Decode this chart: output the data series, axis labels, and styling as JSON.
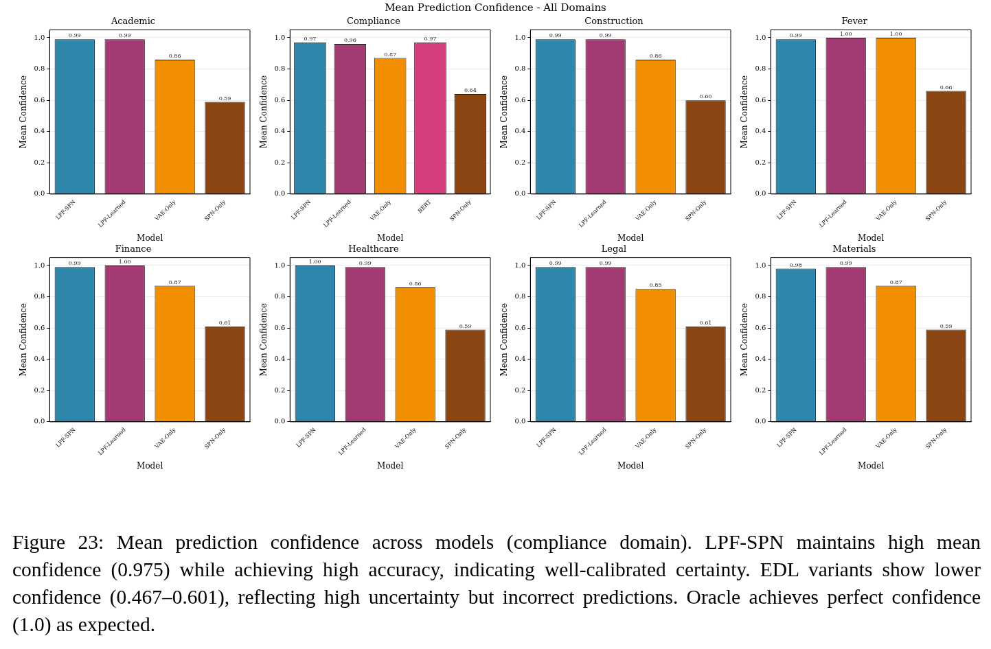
{
  "chart_data": [
    {
      "type": "other",
      "title": "Mean Prediction Confidence - All Domains"
    },
    {
      "type": "bar",
      "title": "Academic",
      "xlabel": "Model",
      "ylabel": "Mean Confidence",
      "categories": [
        "LPF-SPN",
        "LPF-Learned",
        "VAE-Only",
        "SPN-Only"
      ],
      "values": [
        0.99,
        0.99,
        0.86,
        0.59
      ],
      "value_labels": [
        "0.99",
        "0.99",
        "0.86",
        "0.59"
      ],
      "colors": [
        "#2e86ab",
        "#a23b72",
        "#f18f01",
        "#8b4513"
      ],
      "ylim": [
        0,
        1.05
      ],
      "yticks": [
        {
          "value": 0,
          "label": "0.0"
        },
        {
          "value": 0.2,
          "label": "0.2"
        },
        {
          "value": 0.4,
          "label": "0.4"
        },
        {
          "value": 0.6,
          "label": "0.6"
        },
        {
          "value": 0.8,
          "label": "0.8"
        },
        {
          "value": 1,
          "label": "1.0"
        }
      ],
      "grid": "y"
    },
    {
      "type": "bar",
      "title": "Compliance",
      "xlabel": "Model",
      "ylabel": "Mean Confidence",
      "categories": [
        "LPF-SPN",
        "LPF-Learned",
        "VAE-Only",
        "BERT",
        "SPN-Only"
      ],
      "values": [
        0.97,
        0.96,
        0.87,
        0.97,
        0.64
      ],
      "value_labels": [
        "0.97",
        "0.96",
        "0.87",
        "0.97",
        "0.64"
      ],
      "colors": [
        "#2e86ab",
        "#a23b72",
        "#f18f01",
        "#d63f7e",
        "#8b4513"
      ],
      "ylim": [
        0,
        1.05
      ],
      "yticks": [
        {
          "value": 0,
          "label": "0.0"
        },
        {
          "value": 0.2,
          "label": "0.2"
        },
        {
          "value": 0.4,
          "label": "0.4"
        },
        {
          "value": 0.6,
          "label": "0.6"
        },
        {
          "value": 0.8,
          "label": "0.8"
        },
        {
          "value": 1,
          "label": "1.0"
        }
      ],
      "grid": "y"
    },
    {
      "type": "bar",
      "title": "Construction",
      "xlabel": "Model",
      "ylabel": "Mean Confidence",
      "categories": [
        "LPF-SPN",
        "LPF-Learned",
        "VAE-Only",
        "SPN-Only"
      ],
      "values": [
        0.99,
        0.99,
        0.86,
        0.6
      ],
      "value_labels": [
        "0.99",
        "0.99",
        "0.86",
        "0.60"
      ],
      "colors": [
        "#2e86ab",
        "#a23b72",
        "#f18f01",
        "#8b4513"
      ],
      "ylim": [
        0,
        1.05
      ],
      "yticks": [
        {
          "value": 0,
          "label": "0.0"
        },
        {
          "value": 0.2,
          "label": "0.2"
        },
        {
          "value": 0.4,
          "label": "0.4"
        },
        {
          "value": 0.6,
          "label": "0.6"
        },
        {
          "value": 0.8,
          "label": "0.8"
        },
        {
          "value": 1,
          "label": "1.0"
        }
      ],
      "grid": "y"
    },
    {
      "type": "bar",
      "title": "Fever",
      "xlabel": "Model",
      "ylabel": "Mean Confidence",
      "categories": [
        "LPF-SPN",
        "LPF-Learned",
        "VAE-Only",
        "SPN-Only"
      ],
      "values": [
        0.99,
        1.0,
        1.0,
        0.66
      ],
      "value_labels": [
        "0.99",
        "1.00",
        "1.00",
        "0.66"
      ],
      "colors": [
        "#2e86ab",
        "#a23b72",
        "#f18f01",
        "#8b4513"
      ],
      "ylim": [
        0,
        1.05
      ],
      "yticks": [
        {
          "value": 0,
          "label": "0.0"
        },
        {
          "value": 0.2,
          "label": "0.2"
        },
        {
          "value": 0.4,
          "label": "0.4"
        },
        {
          "value": 0.6,
          "label": "0.6"
        },
        {
          "value": 0.8,
          "label": "0.8"
        },
        {
          "value": 1,
          "label": "1.0"
        }
      ],
      "grid": "y"
    },
    {
      "type": "bar",
      "title": "Finance",
      "xlabel": "Model",
      "ylabel": "Mean Confidence",
      "categories": [
        "LPF-SPN",
        "LPF-Learned",
        "VAE-Only",
        "SPN-Only"
      ],
      "values": [
        0.99,
        1.0,
        0.87,
        0.61
      ],
      "value_labels": [
        "0.99",
        "1.00",
        "0.87",
        "0.61"
      ],
      "colors": [
        "#2e86ab",
        "#a23b72",
        "#f18f01",
        "#8b4513"
      ],
      "ylim": [
        0,
        1.05
      ],
      "yticks": [
        {
          "value": 0,
          "label": "0.0"
        },
        {
          "value": 0.2,
          "label": "0.2"
        },
        {
          "value": 0.4,
          "label": "0.4"
        },
        {
          "value": 0.6,
          "label": "0.6"
        },
        {
          "value": 0.8,
          "label": "0.8"
        },
        {
          "value": 1,
          "label": "1.0"
        }
      ],
      "grid": "y"
    },
    {
      "type": "bar",
      "title": "Healthcare",
      "xlabel": "Model",
      "ylabel": "Mean Confidence",
      "categories": [
        "LPF-SPN",
        "LPF-Learned",
        "VAE-Only",
        "SPN-Only"
      ],
      "values": [
        1.0,
        0.99,
        0.86,
        0.59
      ],
      "value_labels": [
        "1.00",
        "0.99",
        "0.86",
        "0.59"
      ],
      "colors": [
        "#2e86ab",
        "#a23b72",
        "#f18f01",
        "#8b4513"
      ],
      "ylim": [
        0,
        1.05
      ],
      "yticks": [
        {
          "value": 0,
          "label": "0.0"
        },
        {
          "value": 0.2,
          "label": "0.2"
        },
        {
          "value": 0.4,
          "label": "0.4"
        },
        {
          "value": 0.6,
          "label": "0.6"
        },
        {
          "value": 0.8,
          "label": "0.8"
        },
        {
          "value": 1,
          "label": "1.0"
        }
      ],
      "grid": "y"
    },
    {
      "type": "bar",
      "title": "Legal",
      "xlabel": "Model",
      "ylabel": "Mean Confidence",
      "categories": [
        "LPF-SPN",
        "LPF-Learned",
        "VAE-Only",
        "SPN-Only"
      ],
      "values": [
        0.99,
        0.99,
        0.85,
        0.61
      ],
      "value_labels": [
        "0.99",
        "0.99",
        "0.85",
        "0.61"
      ],
      "colors": [
        "#2e86ab",
        "#a23b72",
        "#f18f01",
        "#8b4513"
      ],
      "ylim": [
        0,
        1.05
      ],
      "yticks": [
        {
          "value": 0,
          "label": "0.0"
        },
        {
          "value": 0.2,
          "label": "0.2"
        },
        {
          "value": 0.4,
          "label": "0.4"
        },
        {
          "value": 0.6,
          "label": "0.6"
        },
        {
          "value": 0.8,
          "label": "0.8"
        },
        {
          "value": 1,
          "label": "1.0"
        }
      ],
      "grid": "y"
    },
    {
      "type": "bar",
      "title": "Materials",
      "xlabel": "Model",
      "ylabel": "Mean Confidence",
      "categories": [
        "LPF-SPN",
        "LPF-Learned",
        "VAE-Only",
        "SPN-Only"
      ],
      "values": [
        0.98,
        0.99,
        0.87,
        0.59
      ],
      "value_labels": [
        "0.98",
        "0.99",
        "0.87",
        "0.59"
      ],
      "colors": [
        "#2e86ab",
        "#a23b72",
        "#f18f01",
        "#8b4513"
      ],
      "ylim": [
        0,
        1.05
      ],
      "yticks": [
        {
          "value": 0,
          "label": "0.0"
        },
        {
          "value": 0.2,
          "label": "0.2"
        },
        {
          "value": 0.4,
          "label": "0.4"
        },
        {
          "value": 0.6,
          "label": "0.6"
        },
        {
          "value": 0.8,
          "label": "0.8"
        },
        {
          "value": 1,
          "label": "1.0"
        }
      ],
      "grid": "y"
    },
    {
      "type": "other",
      "annotations": [
        "Figure 23: Mean prediction confidence across models (compliance domain). LPF-SPN maintains high mean confidence (0.975) while achieving high accuracy, indicating well-calibrated certainty. EDL variants show lower confidence (0.467–0.601), reflecting high uncertainty but incorrect predictions. Oracle achieves perfect confidence (1.0) as expected."
      ]
    }
  ]
}
